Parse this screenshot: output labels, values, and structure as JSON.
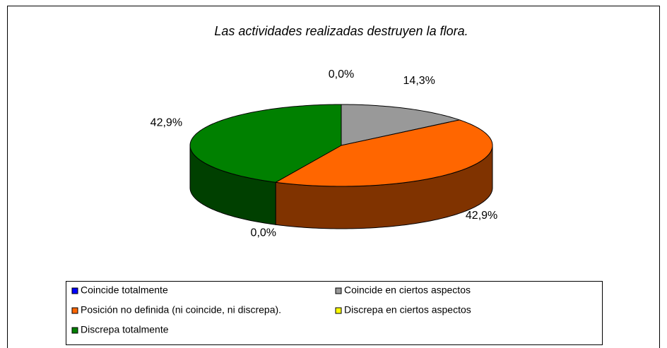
{
  "chart_data": {
    "type": "pie",
    "title": "Las actividades realizadas destruyen la flora.",
    "categories": [
      "Coincide totalmente",
      "Coincide en ciertos aspectos",
      "Posición no definida (ni coincide, ni discrepa).",
      "Discrepa en ciertos aspectos",
      "Discrepa totalmente"
    ],
    "values": [
      0.0,
      14.3,
      42.9,
      0.0,
      42.9
    ],
    "value_labels": [
      "0,0%",
      "14,3%",
      "42,9%",
      "0,0%",
      "42,9%"
    ],
    "colors": [
      "#0000ff",
      "#999999",
      "#ff6600",
      "#ffff00",
      "#008000"
    ],
    "side_colors": [
      "#000080",
      "#4d4d4d",
      "#803300",
      "#808000",
      "#004000"
    ],
    "legend": "bottom"
  }
}
